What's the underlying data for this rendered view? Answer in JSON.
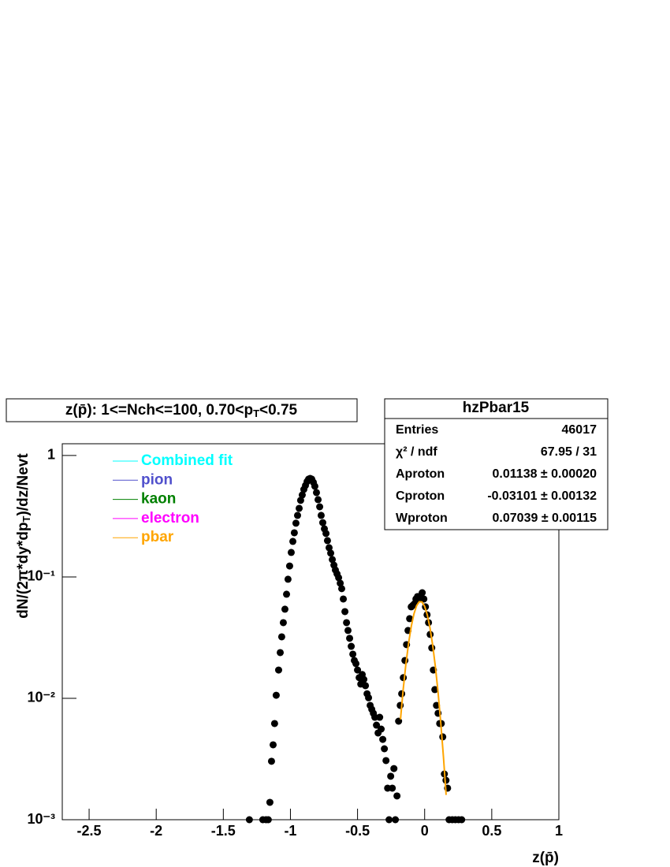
{
  "chart_data": {
    "type": "scatter",
    "title": [
      "z(p̄): 1<=Nch<=100, 0.70<p",
      "T",
      "<0.75"
    ],
    "x_label": "z(p̄)",
    "y_label": [
      "dN/(2π*dy*dp",
      "T",
      ")/dz/Nevt"
    ],
    "xlim": [
      -2.7,
      1
    ],
    "ylim": [
      0.001,
      1.25
    ],
    "log_y": true,
    "xticks": [
      -2.5,
      -2,
      -1.5,
      -1,
      -0.5,
      0,
      0.5,
      1
    ],
    "yticks": [
      {
        "value": 0.001,
        "label": "10⁻³"
      },
      {
        "value": 0.01,
        "label": "10⁻²"
      },
      {
        "value": 0.1,
        "label": "10⁻¹"
      },
      1
    ],
    "points": {
      "color": "#000000",
      "x": [
        -1.306,
        -1.206,
        -1.182,
        -1.165,
        -1.153,
        -1.141,
        -1.129,
        -1.118,
        -1.106,
        -1.088,
        -1.076,
        -1.065,
        -1.053,
        -1.041,
        -1.029,
        -1.018,
        -1.006,
        -0.994,
        -0.982,
        -0.971,
        -0.959,
        -0.947,
        -0.935,
        -0.924,
        -0.912,
        -0.9,
        -0.888,
        -0.876,
        -0.865,
        -0.853,
        -0.841,
        -0.829,
        -0.818,
        -0.806,
        -0.794,
        -0.782,
        -0.771,
        -0.759,
        -0.747,
        -0.735,
        -0.724,
        -0.712,
        -0.7,
        -0.688,
        -0.676,
        -0.665,
        -0.653,
        -0.641,
        -0.629,
        -0.618,
        -0.606,
        -0.594,
        -0.582,
        -0.571,
        -0.559,
        -0.547,
        -0.535,
        -0.524,
        -0.512,
        -0.5,
        -0.488,
        -0.476,
        -0.465,
        -0.453,
        -0.441,
        -0.429,
        -0.418,
        -0.406,
        -0.394,
        -0.382,
        -0.371,
        -0.359,
        -0.347,
        -0.335,
        -0.324,
        -0.312,
        -0.3,
        -0.288,
        -0.276,
        -0.265,
        -0.253,
        -0.241,
        -0.229,
        -0.218,
        -0.206,
        -0.194,
        -0.182,
        -0.171,
        -0.159,
        -0.147,
        -0.135,
        -0.124,
        -0.112,
        -0.1,
        -0.088,
        -0.076,
        -0.065,
        -0.053,
        -0.041,
        -0.029,
        -0.018,
        -0.006,
        0.006,
        0.018,
        0.029,
        0.041,
        0.053,
        0.065,
        0.076,
        0.088,
        0.1,
        0.112,
        0.124,
        0.135,
        0.147,
        0.159,
        0.171,
        0.182,
        0.206,
        0.229,
        0.253,
        0.276
      ],
      "values": [
        0.001,
        0.001,
        0.001,
        0.001,
        0.00139,
        0.00303,
        0.00414,
        0.0062,
        0.0106,
        0.0171,
        0.0238,
        0.0321,
        0.042,
        0.0542,
        0.072,
        0.0957,
        0.123,
        0.159,
        0.196,
        0.231,
        0.277,
        0.321,
        0.367,
        0.427,
        0.473,
        0.526,
        0.567,
        0.611,
        0.639,
        0.648,
        0.639,
        0.601,
        0.558,
        0.495,
        0.433,
        0.378,
        0.321,
        0.28,
        0.249,
        0.228,
        0.199,
        0.174,
        0.157,
        0.139,
        0.125,
        0.114,
        0.106,
        0.0986,
        0.0887,
        0.08,
        0.0658,
        0.0518,
        0.042,
        0.0362,
        0.0312,
        0.0268,
        0.0231,
        0.0205,
        0.0193,
        0.0171,
        0.0148,
        0.0131,
        0.0157,
        0.0143,
        0.0127,
        0.0109,
        0.0101,
        0.00874,
        0.00811,
        0.00753,
        0.00698,
        0.00601,
        0.00518,
        0.00698,
        0.00558,
        0.00459,
        0.00384,
        0.00307,
        0.00182,
        0.001,
        0.00228,
        0.00182,
        0.00264,
        0.001,
        0.00157,
        0.00648,
        0.00874,
        0.0109,
        0.0148,
        0.0205,
        0.0277,
        0.0362,
        0.0453,
        0.0567,
        0.0583,
        0.0601,
        0.0658,
        0.0689,
        0.0658,
        0.0698,
        0.0741,
        0.0658,
        0.0567,
        0.0488,
        0.042,
        0.0336,
        0.026,
        0.0171,
        0.0118,
        0.00874,
        0.00753,
        0.0062,
        0.0062,
        0.00481,
        0.00238,
        0.00211,
        0.00182,
        0.001,
        0.001,
        0.001,
        0.001,
        0.001
      ]
    },
    "series": [
      {
        "name": "Combined fit",
        "color": "#00ffff"
      },
      {
        "name": "pion",
        "color": "#5050cc"
      },
      {
        "name": "kaon",
        "color": "#008000"
      },
      {
        "name": "electron",
        "color": "#ff00ff"
      },
      {
        "name": "pbar",
        "color": "#ffa500",
        "x": [
          -0.18,
          -0.16,
          -0.14,
          -0.12,
          -0.1,
          -0.08,
          -0.06,
          -0.04,
          -0.02,
          0,
          0.02,
          0.04,
          0.06,
          0.08,
          0.1,
          0.12,
          0.14,
          0.16
        ],
        "values": [
          0.0067,
          0.0118,
          0.019,
          0.0283,
          0.039,
          0.0495,
          0.0579,
          0.0625,
          0.0622,
          0.0572,
          0.0485,
          0.0379,
          0.0273,
          0.0182,
          0.0112,
          0.0063,
          0.0033,
          0.0016
        ]
      }
    ],
    "stats": {
      "title": "hzPbar15",
      "rows": [
        {
          "label": "Entries",
          "value": 46017
        },
        {
          "label": "χ² / ndf",
          "value": "67.95 / 31"
        },
        {
          "label": "Aproton",
          "value": "0.01138 ± 0.00020"
        },
        {
          "label": "Cproton",
          "value": "-0.03101 ± 0.00132"
        },
        {
          "label": "Wproton",
          "value": "0.07039 ± 0.00115"
        }
      ]
    }
  }
}
